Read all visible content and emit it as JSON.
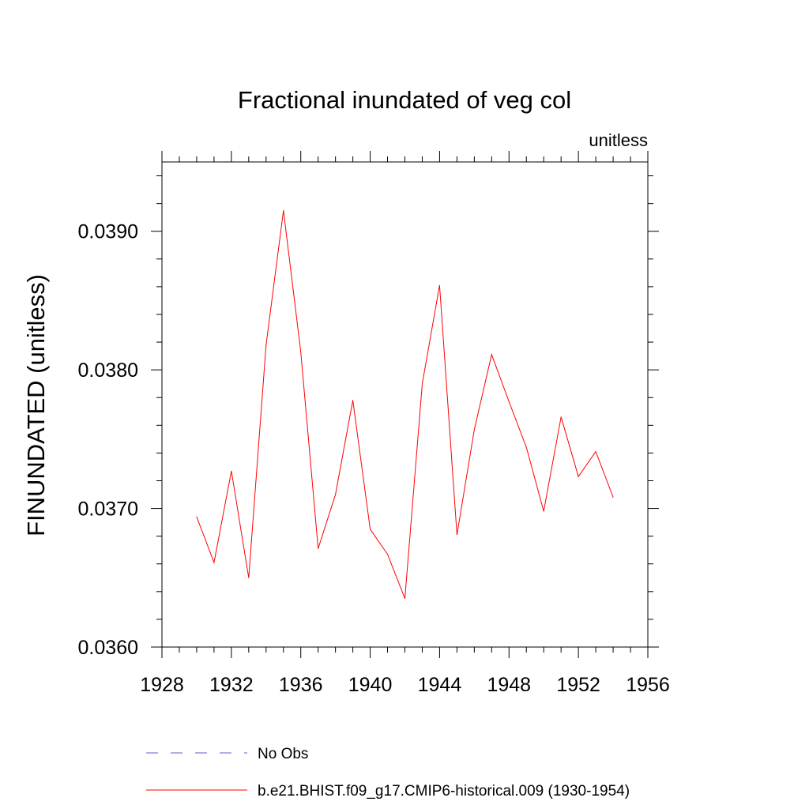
{
  "chart_data": {
    "type": "line",
    "title": "Fractional inundated of veg col",
    "units_label": "unitless",
    "xlabel": "",
    "ylabel": "FINUNDATED  (unitless)",
    "xlim": [
      1928,
      1956
    ],
    "ylim": [
      0.036,
      0.0395
    ],
    "x_ticks": [
      1928,
      1932,
      1936,
      1940,
      1944,
      1948,
      1952,
      1956
    ],
    "x_tick_labels": [
      "1928",
      "1932",
      "1936",
      "1940",
      "1944",
      "1948",
      "1952",
      "1956"
    ],
    "y_ticks": [
      0.036,
      0.037,
      0.038,
      0.039
    ],
    "y_tick_labels": [
      "0.0360",
      "0.0370",
      "0.0380",
      "0.0390"
    ],
    "grid": false,
    "series": [
      {
        "name": "b.e21.BHIST.f09_g17.CMIP6-historical.009 (1930-1954)",
        "color": "#ff0000",
        "style": "solid",
        "x": [
          1930,
          1931,
          1932,
          1933,
          1934,
          1935,
          1936,
          1937,
          1938,
          1939,
          1940,
          1941,
          1942,
          1943,
          1944,
          1945,
          1946,
          1947,
          1948,
          1949,
          1950,
          1951,
          1952,
          1953,
          1954
        ],
        "values": [
          0.03694,
          0.03661,
          0.03727,
          0.0365,
          0.03818,
          0.03915,
          0.03813,
          0.03671,
          0.0371,
          0.03778,
          0.03685,
          0.03667,
          0.03635,
          0.0379,
          0.03861,
          0.03681,
          0.03757,
          0.03811,
          0.03777,
          0.03744,
          0.03698,
          0.03766,
          0.03723,
          0.03741,
          0.03708
        ]
      }
    ],
    "legend": [
      {
        "label": "No Obs",
        "color": "#6a5acd",
        "style": "dashed"
      },
      {
        "label": "b.e21.BHIST.f09_g17.CMIP6-historical.009 (1930-1954)",
        "color": "#ff0000",
        "style": "solid"
      }
    ],
    "legend_position": "bottom"
  }
}
